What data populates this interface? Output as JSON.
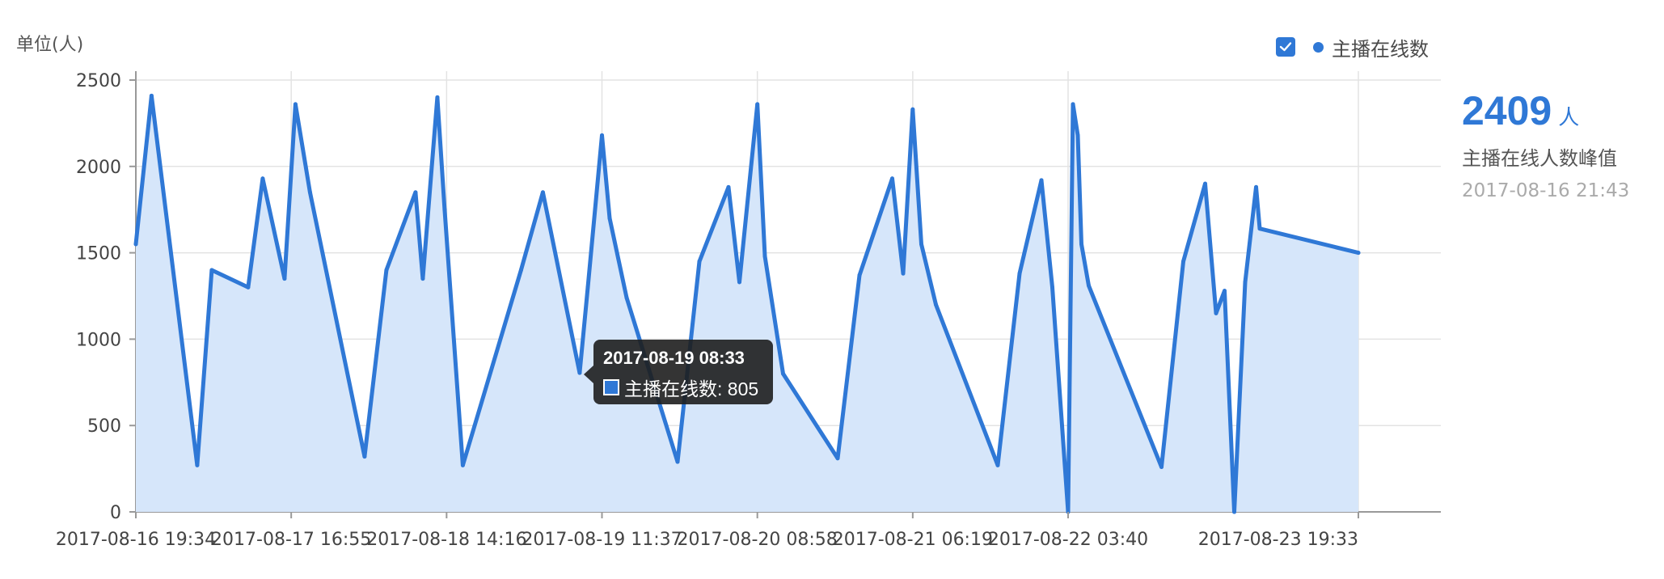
{
  "chart_data": {
    "type": "area",
    "unit_label": "单位(人)",
    "legend": {
      "series_name": "主播在线数",
      "checked": true,
      "placement": "top-right"
    },
    "ylim": [
      0,
      2500
    ],
    "yticks": [
      0,
      500,
      1000,
      1500,
      2000,
      2500
    ],
    "x_ticks": [
      "2017-08-16 19:34",
      "2017-08-17 16:55",
      "2017-08-18 14:16",
      "2017-08-19 11:37",
      "2017-08-20 08:58",
      "2017-08-21 06:19",
      "2017-08-22 03:40",
      "2017-08-23 19:33"
    ],
    "series": [
      {
        "name": "主播在线数",
        "color": "#2f78d6",
        "fill": "#d6e6fa",
        "x": [
          "2017-08-16 19:34",
          "2017-08-16 21:43",
          "2017-08-17 04:00",
          "2017-08-17 06:00",
          "2017-08-17 11:00",
          "2017-08-17 13:00",
          "2017-08-17 16:00",
          "2017-08-17 17:30",
          "2017-08-17 19:30",
          "2017-08-18 03:00",
          "2017-08-18 06:00",
          "2017-08-18 10:00",
          "2017-08-18 11:00",
          "2017-08-18 13:00",
          "2017-08-18 14:00",
          "2017-08-18 16:30",
          "2017-08-19 00:30",
          "2017-08-19 03:30",
          "2017-08-19 08:33",
          "2017-08-19 09:40",
          "2017-08-19 11:37",
          "2017-08-19 12:40",
          "2017-08-19 15:00",
          "2017-08-19 22:00",
          "2017-08-20 01:00",
          "2017-08-20 05:00",
          "2017-08-20 06:30",
          "2017-08-20 08:58",
          "2017-08-20 10:00",
          "2017-08-20 12:30",
          "2017-08-20 20:00",
          "2017-08-20 23:00",
          "2017-08-21 03:30",
          "2017-08-21 05:00",
          "2017-08-21 06:19",
          "2017-08-21 07:30",
          "2017-08-21 09:30",
          "2017-08-21 18:00",
          "2017-08-21 21:00",
          "2017-08-22 00:00",
          "2017-08-22 01:30",
          "2017-08-22 03:40",
          "2017-08-22 04:20",
          "2017-08-22 05:00",
          "2017-08-22 05:30",
          "2017-08-22 06:30",
          "2017-08-22 16:30",
          "2017-08-22 19:30",
          "2017-08-22 22:30",
          "2017-08-23 00:00",
          "2017-08-23 01:10",
          "2017-08-23 02:30",
          "2017-08-23 04:00",
          "2017-08-23 05:30",
          "2017-08-23 06:00",
          "2017-08-23 19:33"
        ],
        "values": [
          1550,
          2409,
          270,
          1400,
          1300,
          1930,
          1350,
          2360,
          1850,
          320,
          1400,
          1850,
          1350,
          2400,
          1750,
          270,
          1400,
          1850,
          805,
          1300,
          2180,
          1700,
          1240,
          290,
          1450,
          1880,
          1330,
          2360,
          1480,
          800,
          310,
          1370,
          1930,
          1380,
          2330,
          1550,
          1200,
          270,
          1380,
          1920,
          1300,
          0,
          2360,
          2180,
          1550,
          1310,
          260,
          1450,
          1900,
          1150,
          1280,
          0,
          1330,
          1880,
          1640,
          1500
        ]
      }
    ],
    "tooltip": {
      "time": "2017-08-19 08:33",
      "series_name": "主播在线数",
      "value_text": "805"
    },
    "peak": {
      "value": "2409",
      "unit": "人",
      "caption": "主播在线人数峰值",
      "time": "2017-08-16 21:43"
    }
  }
}
